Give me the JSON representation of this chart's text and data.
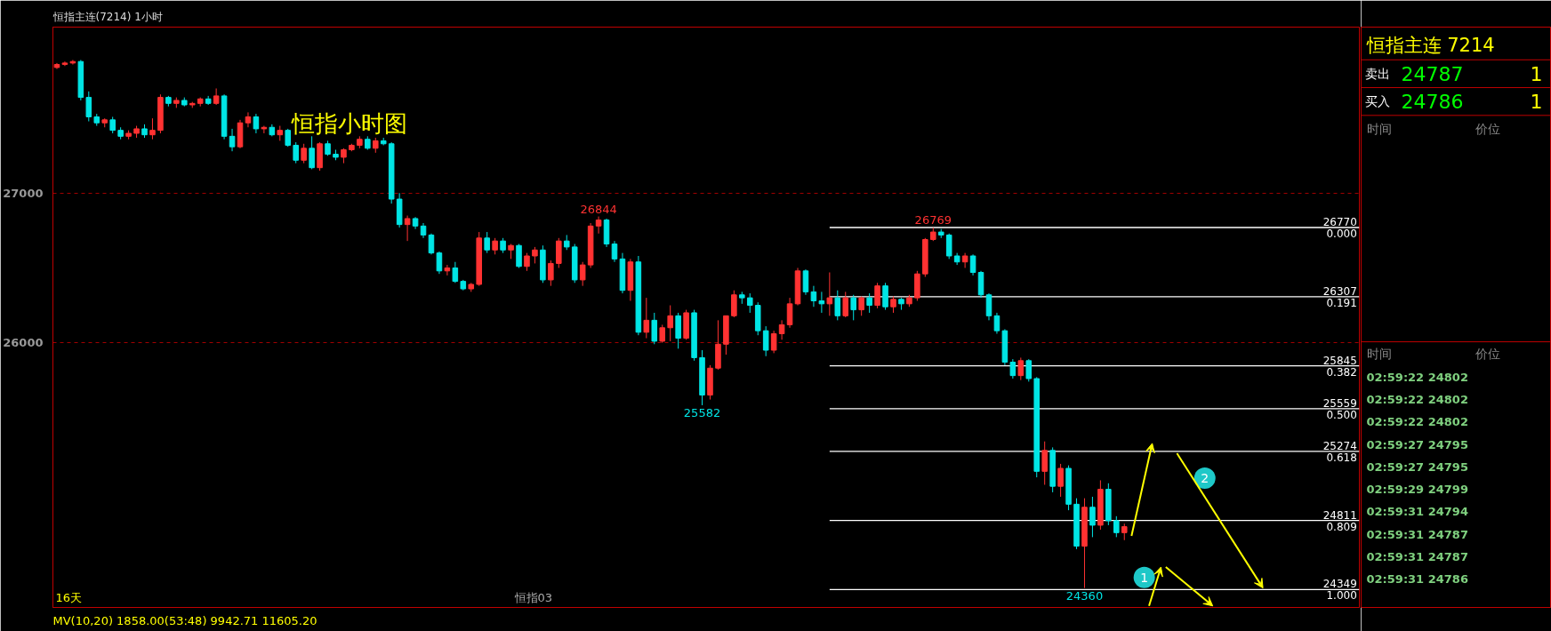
{
  "chart_data": [
    {
      "type": "candlestick",
      "title": "恒指主连(7214)  1小时",
      "subtitle": "恒指小时图",
      "categories": [
        null,
        null,
        null,
        null,
        null,
        null,
        null,
        null,
        null,
        null,
        null,
        null,
        null,
        null,
        null,
        null,
        null,
        null,
        null,
        null,
        null,
        null,
        null,
        null,
        null,
        null,
        null,
        null,
        null,
        null,
        null,
        null,
        null,
        null,
        null,
        null,
        null,
        null,
        null,
        null,
        null,
        null,
        null,
        null,
        null,
        null,
        null,
        null,
        null,
        null,
        null,
        null,
        null,
        null,
        null,
        null,
        null,
        null,
        null,
        null,
        null,
        null,
        null,
        null,
        null,
        null,
        null,
        null,
        null,
        null,
        null,
        null,
        null,
        null,
        null,
        null,
        null,
        null,
        null,
        null,
        null,
        null,
        null,
        null,
        null,
        null,
        null,
        null,
        null,
        null,
        null,
        null,
        null,
        null,
        null,
        null,
        null,
        null,
        null,
        null,
        null,
        null,
        null,
        null,
        null,
        null,
        null,
        null,
        null,
        null,
        null,
        null,
        null,
        null,
        null,
        null,
        null,
        null,
        null,
        null,
        null,
        null,
        null,
        null,
        null,
        null,
        null,
        null,
        null,
        null,
        null,
        null,
        null,
        null,
        null,
        null,
        null,
        null,
        null,
        null,
        null,
        null,
        null,
        null,
        null,
        null,
        null,
        null,
        null,
        null,
        null,
        null,
        null,
        null,
        null,
        null,
        null,
        null,
        null,
        null,
        null,
        null,
        null,
        null
      ],
      "ohlc": [
        [
          27840,
          27870,
          27830,
          27860
        ],
        [
          27860,
          27880,
          27850,
          27870
        ],
        [
          27870,
          27890,
          27860,
          27880
        ],
        [
          27880,
          27890,
          27620,
          27640
        ],
        [
          27640,
          27680,
          27480,
          27510
        ],
        [
          27510,
          27530,
          27450,
          27470
        ],
        [
          27470,
          27500,
          27440,
          27490
        ],
        [
          27490,
          27510,
          27400,
          27420
        ],
        [
          27420,
          27440,
          27360,
          27380
        ],
        [
          27380,
          27420,
          27360,
          27400
        ],
        [
          27400,
          27450,
          27370,
          27430
        ],
        [
          27430,
          27460,
          27370,
          27390
        ],
        [
          27390,
          27500,
          27360,
          27420
        ],
        [
          27420,
          27660,
          27400,
          27640
        ],
        [
          27640,
          27650,
          27580,
          27600
        ],
        [
          27600,
          27640,
          27570,
          27620
        ],
        [
          27620,
          27640,
          27580,
          27590
        ],
        [
          27590,
          27610,
          27570,
          27600
        ],
        [
          27600,
          27640,
          27580,
          27630
        ],
        [
          27630,
          27650,
          27590,
          27600
        ],
        [
          27600,
          27700,
          27590,
          27650
        ],
        [
          27650,
          27660,
          27360,
          27380
        ],
        [
          27380,
          27430,
          27280,
          27310
        ],
        [
          27310,
          27490,
          27300,
          27470
        ],
        [
          27470,
          27540,
          27440,
          27510
        ],
        [
          27510,
          27530,
          27400,
          27430
        ],
        [
          27430,
          27450,
          27400,
          27440
        ],
        [
          27440,
          27460,
          27380,
          27390
        ],
        [
          27390,
          27450,
          27350,
          27420
        ],
        [
          27420,
          27430,
          27310,
          27320
        ],
        [
          27320,
          27340,
          27200,
          27220
        ],
        [
          27220,
          27330,
          27200,
          27300
        ],
        [
          27300,
          27380,
          27160,
          27170
        ],
        [
          27170,
          27340,
          27150,
          27330
        ],
        [
          27330,
          27350,
          27250,
          27260
        ],
        [
          27260,
          27290,
          27220,
          27240
        ],
        [
          27240,
          27300,
          27200,
          27290
        ],
        [
          27290,
          27330,
          27280,
          27320
        ],
        [
          27320,
          27380,
          27300,
          27360
        ],
        [
          27360,
          27380,
          27290,
          27300
        ],
        [
          27300,
          27370,
          27270,
          27350
        ],
        [
          27350,
          27370,
          27320,
          27330
        ],
        [
          27330,
          27340,
          26930,
          26960
        ],
        [
          26960,
          27000,
          26770,
          26790
        ],
        [
          26790,
          26850,
          26680,
          26830
        ],
        [
          26830,
          26840,
          26760,
          26780
        ],
        [
          26780,
          26800,
          26700,
          26720
        ],
        [
          26720,
          26730,
          26590,
          26600
        ],
        [
          26600,
          26610,
          26460,
          26480
        ],
        [
          26480,
          26520,
          26450,
          26500
        ],
        [
          26500,
          26540,
          26400,
          26410
        ],
        [
          26410,
          26420,
          26350,
          26360
        ],
        [
          26360,
          26400,
          26340,
          26390
        ],
        [
          26390,
          26740,
          26380,
          26700
        ],
        [
          26700,
          26740,
          26600,
          26620
        ],
        [
          26620,
          26700,
          26590,
          26680
        ],
        [
          26680,
          26700,
          26600,
          26620
        ],
        [
          26620,
          26660,
          26560,
          26650
        ],
        [
          26650,
          26660,
          26500,
          26510
        ],
        [
          26510,
          26600,
          26480,
          26580
        ],
        [
          26580,
          26640,
          26530,
          26620
        ],
        [
          26620,
          26650,
          26400,
          26420
        ],
        [
          26420,
          26550,
          26380,
          26530
        ],
        [
          26530,
          26700,
          26500,
          26680
        ],
        [
          26680,
          26720,
          26620,
          26640
        ],
        [
          26640,
          26660,
          26400,
          26420
        ],
        [
          26420,
          26540,
          26380,
          26520
        ],
        [
          26520,
          26800,
          26500,
          26780
        ],
        [
          26780,
          26844,
          26730,
          26820
        ],
        [
          26820,
          26830,
          26640,
          26660
        ],
        [
          26660,
          26680,
          26540,
          26560
        ],
        [
          26560,
          26600,
          26330,
          26350
        ],
        [
          26350,
          26560,
          26280,
          26540
        ],
        [
          26540,
          26580,
          26050,
          26070
        ],
        [
          26070,
          26300,
          26030,
          26150
        ],
        [
          26150,
          26200,
          25990,
          26010
        ],
        [
          26010,
          26120,
          26000,
          26100
        ],
        [
          26100,
          26250,
          26010,
          26180
        ],
        [
          26180,
          26200,
          25960,
          26030
        ],
        [
          26030,
          26220,
          26020,
          26200
        ],
        [
          26200,
          26220,
          25880,
          25900
        ],
        [
          25900,
          25950,
          25582,
          25650
        ],
        [
          25650,
          25850,
          25620,
          25830
        ],
        [
          25830,
          26150,
          25820,
          25990
        ],
        [
          25990,
          26180,
          25920,
          26180
        ],
        [
          26180,
          26350,
          26170,
          26320
        ],
        [
          26320,
          26340,
          26260,
          26300
        ],
        [
          26300,
          26330,
          26200,
          26250
        ],
        [
          26250,
          26270,
          26050,
          26080
        ],
        [
          26080,
          26110,
          25910,
          25950
        ],
        [
          25950,
          26080,
          25930,
          26060
        ],
        [
          26060,
          26150,
          26020,
          26120
        ],
        [
          26120,
          26300,
          26100,
          26260
        ],
        [
          26260,
          26500,
          26250,
          26480
        ],
        [
          26480,
          26490,
          26320,
          26340
        ],
        [
          26340,
          26380,
          26240,
          26280
        ],
        [
          26280,
          26340,
          26200,
          26260
        ],
        [
          26260,
          26470,
          26180,
          26300
        ],
        [
          26300,
          26350,
          26150,
          26180
        ],
        [
          26180,
          26340,
          26170,
          26300
        ],
        [
          26300,
          26320,
          26150,
          26220
        ],
        [
          26220,
          26310,
          26180,
          26300
        ],
        [
          26300,
          26330,
          26200,
          26250
        ],
        [
          26250,
          26400,
          26230,
          26380
        ],
        [
          26380,
          26400,
          26220,
          26240
        ],
        [
          26240,
          26310,
          26200,
          26290
        ],
        [
          26290,
          26300,
          26220,
          26260
        ],
        [
          26260,
          26320,
          26240,
          26300
        ],
        [
          26300,
          26480,
          26280,
          26460
        ],
        [
          26460,
          26700,
          26440,
          26690
        ],
        [
          26690,
          26769,
          26680,
          26740
        ],
        [
          26740,
          26760,
          26700,
          26720
        ],
        [
          26720,
          26730,
          26560,
          26580
        ],
        [
          26580,
          26600,
          26520,
          26540
        ],
        [
          26540,
          26600,
          26500,
          26580
        ],
        [
          26580,
          26590,
          26450,
          26470
        ],
        [
          26470,
          26480,
          26300,
          26320
        ],
        [
          26320,
          26330,
          26150,
          26180
        ],
        [
          26180,
          26200,
          26060,
          26080
        ],
        [
          26080,
          26090,
          25850,
          25870
        ],
        [
          25870,
          25890,
          25760,
          25780
        ],
        [
          25780,
          25900,
          25750,
          25880
        ],
        [
          25880,
          25890,
          25740,
          25760
        ],
        [
          25760,
          25770,
          25100,
          25140
        ],
        [
          25140,
          25340,
          25050,
          25280
        ],
        [
          25280,
          25300,
          25000,
          25040
        ],
        [
          25040,
          25190,
          24970,
          25160
        ],
        [
          25160,
          25180,
          24880,
          24920
        ],
        [
          24920,
          24960,
          24620,
          24640
        ],
        [
          24640,
          24960,
          24360,
          24900
        ],
        [
          24900,
          24970,
          24700,
          24780
        ],
        [
          24780,
          25080,
          24750,
          25020
        ],
        [
          25020,
          25060,
          24780,
          24810
        ],
        [
          24810,
          24840,
          24700,
          24730
        ],
        [
          24730,
          24790,
          24680,
          24770
        ],
        null,
        null,
        null,
        null,
        null,
        null,
        null,
        null,
        null,
        null,
        null,
        null,
        null,
        null,
        null,
        null,
        null,
        null,
        null,
        null,
        null,
        null,
        null,
        null,
        null,
        null,
        null,
        null,
        null
      ],
      "ylim": [
        24230,
        28110
      ],
      "yticks": [
        27000,
        26000
      ],
      "grid": "y",
      "ref_lines": [
        {
          "axis": "y",
          "value": 26770,
          "label": "26770\n0.000",
          "color": "#ffffff"
        },
        {
          "axis": "y",
          "value": 26307,
          "label": "26307\n0.191",
          "color": "#ffffff"
        },
        {
          "axis": "y",
          "value": 25845,
          "label": "25845\n0.382",
          "color": "#ffffff"
        },
        {
          "axis": "y",
          "value": 25559,
          "label": "25559\n0.500",
          "color": "#ffffff"
        },
        {
          "axis": "y",
          "value": 25274,
          "label": "25274\n0.618",
          "color": "#ffffff"
        },
        {
          "axis": "y",
          "value": 24811,
          "label": "24811\n0.809",
          "color": "#ffffff"
        },
        {
          "axis": "y",
          "value": 24349,
          "label": "24349\n1.000",
          "color": "#ffffff"
        }
      ],
      "annotations": [
        "26844",
        "25582",
        "26769",
        "24360",
        "1",
        "2",
        "16天",
        "恒指03",
        "MV(10,20)  1858.00(53:48)  9942.71  11605.20"
      ]
    },
    {
      "type": "other",
      "title": "恒指主连  7214",
      "annotations": [
        "卖出 24787 1",
        "买入 24786 1",
        "时间 价位",
        "时间 价位",
        "02:59:22 24802",
        "02:59:22 24802",
        "02:59:22 24802",
        "02:59:27 24795",
        "02:59:27 24795",
        "02:59:29 24799",
        "02:59:31 24794",
        "02:59:31 24787",
        "02:59:31 24787",
        "02:59:31 24786"
      ]
    }
  ]
}
